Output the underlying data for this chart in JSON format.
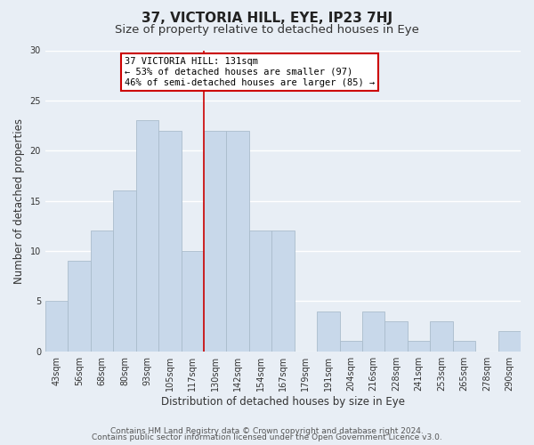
{
  "title": "37, VICTORIA HILL, EYE, IP23 7HJ",
  "subtitle": "Size of property relative to detached houses in Eye",
  "xlabel": "Distribution of detached houses by size in Eye",
  "ylabel": "Number of detached properties",
  "bar_color": "#c8d8ea",
  "bar_edge_color": "#aabccc",
  "categories": [
    "43sqm",
    "56sqm",
    "68sqm",
    "80sqm",
    "93sqm",
    "105sqm",
    "117sqm",
    "130sqm",
    "142sqm",
    "154sqm",
    "167sqm",
    "179sqm",
    "191sqm",
    "204sqm",
    "216sqm",
    "228sqm",
    "241sqm",
    "253sqm",
    "265sqm",
    "278sqm",
    "290sqm"
  ],
  "values": [
    5,
    9,
    12,
    16,
    23,
    22,
    10,
    22,
    22,
    12,
    12,
    0,
    4,
    1,
    4,
    3,
    1,
    3,
    1,
    0,
    2
  ],
  "vline_x": 6.5,
  "vline_color": "#cc0000",
  "annotation_title": "37 VICTORIA HILL: 131sqm",
  "annotation_line1": "← 53% of detached houses are smaller (97)",
  "annotation_line2": "46% of semi-detached houses are larger (85) →",
  "annotation_box_color": "#ffffff",
  "annotation_box_edge": "#cc0000",
  "ylim": [
    0,
    30
  ],
  "yticks": [
    0,
    5,
    10,
    15,
    20,
    25,
    30
  ],
  "footer1": "Contains HM Land Registry data © Crown copyright and database right 2024.",
  "footer2": "Contains public sector information licensed under the Open Government Licence v3.0.",
  "background_color": "#e8eef5",
  "plot_background": "#e8eef5",
  "grid_color": "#ffffff",
  "title_fontsize": 11,
  "subtitle_fontsize": 9.5,
  "label_fontsize": 8.5,
  "tick_fontsize": 7,
  "footer_fontsize": 6.5
}
